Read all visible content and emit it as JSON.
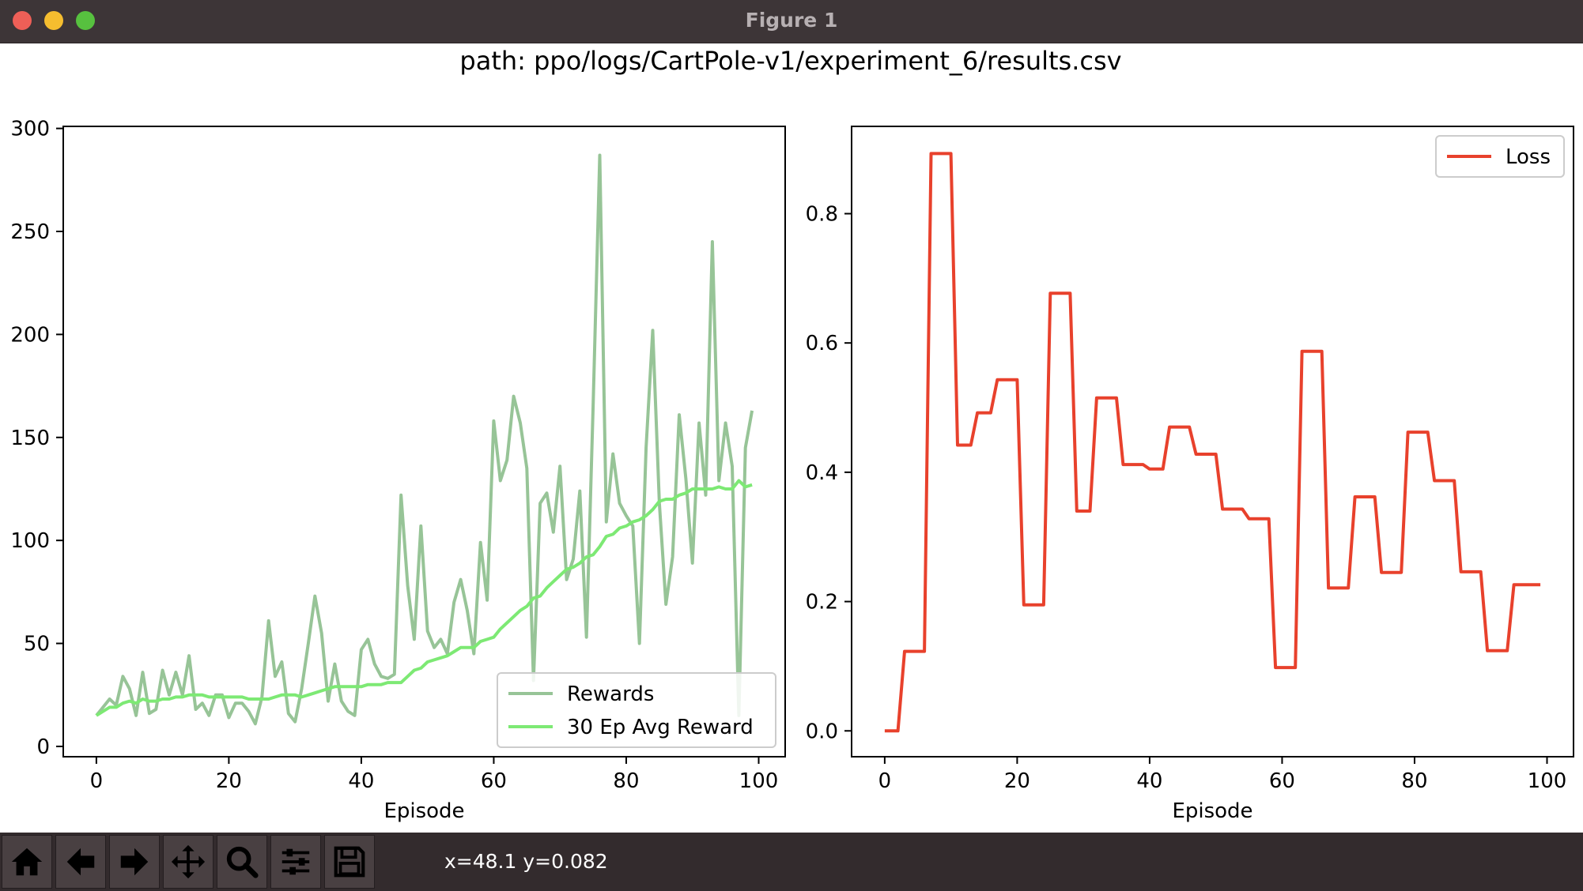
{
  "window": {
    "title": "Figure 1"
  },
  "figure": {
    "suptitle": "path: ppo/logs/CartPole-v1/experiment_6/results.csv"
  },
  "toolbar": {
    "buttons": [
      "home-icon",
      "back-arrow-icon",
      "forward-arrow-icon",
      "pan-move-icon",
      "zoom-magnifier-icon",
      "configure-sliders-icon",
      "save-floppy-icon"
    ],
    "coords": "x=48.1 y=0.082"
  },
  "colors": {
    "rewards": "#97c497",
    "avg": "#7de974",
    "loss": "#e8412c"
  },
  "chart_data": [
    {
      "type": "line",
      "title": "",
      "xlabel": "Episode",
      "ylabel": "",
      "xlim": [
        -5,
        104
      ],
      "ylim": [
        -5,
        301
      ],
      "xticks": [
        0,
        20,
        40,
        60,
        80,
        100
      ],
      "yticks": [
        0,
        50,
        100,
        150,
        200,
        250,
        300
      ],
      "grid": false,
      "legend": "lower-right",
      "x": [
        0,
        1,
        2,
        3,
        4,
        5,
        6,
        7,
        8,
        9,
        10,
        11,
        12,
        13,
        14,
        15,
        16,
        17,
        18,
        19,
        20,
        21,
        22,
        23,
        24,
        25,
        26,
        27,
        28,
        29,
        30,
        31,
        32,
        33,
        34,
        35,
        36,
        37,
        38,
        39,
        40,
        41,
        42,
        43,
        44,
        45,
        46,
        47,
        48,
        49,
        50,
        51,
        52,
        53,
        54,
        55,
        56,
        57,
        58,
        59,
        60,
        61,
        62,
        63,
        64,
        65,
        66,
        67,
        68,
        69,
        70,
        71,
        72,
        73,
        74,
        75,
        76,
        77,
        78,
        79,
        80,
        81,
        82,
        83,
        84,
        85,
        86,
        87,
        88,
        89,
        90,
        91,
        92,
        93,
        94,
        95,
        96,
        97,
        98,
        99
      ],
      "series": [
        {
          "name": "Rewards",
          "values": [
            15,
            19,
            23,
            20,
            34,
            28,
            15,
            36,
            16,
            18,
            37,
            25,
            36,
            25,
            44,
            18,
            21,
            15,
            25,
            25,
            14,
            21,
            21,
            17,
            11,
            24,
            61,
            34,
            41,
            16,
            12,
            28,
            50,
            73,
            55,
            22,
            40,
            22,
            17,
            15,
            47,
            52,
            40,
            34,
            33,
            35,
            122,
            78,
            52,
            107,
            56,
            48,
            52,
            45,
            70,
            81,
            66,
            45,
            99,
            71,
            158,
            129,
            139,
            170,
            157,
            135,
            32,
            118,
            123,
            104,
            136,
            81,
            91,
            124,
            53,
            165,
            287,
            109,
            142,
            118,
            112,
            107,
            50,
            145,
            202,
            118,
            69,
            92,
            161,
            130,
            89,
            157,
            122,
            245,
            129,
            157,
            136,
            15,
            145,
            163
          ]
        },
        {
          "name": "30 Ep Avg Reward",
          "values": [
            15,
            17,
            19,
            19,
            21,
            22,
            21,
            23,
            22,
            22,
            23,
            23,
            24,
            24,
            25,
            25,
            25,
            24,
            24,
            24,
            24,
            24,
            24,
            23,
            23,
            23,
            23,
            24,
            25,
            25,
            25,
            24,
            25,
            26,
            27,
            28,
            29,
            29,
            29,
            29,
            29,
            30,
            30,
            30,
            31,
            31,
            31,
            34,
            37,
            38,
            41,
            42,
            43,
            44,
            46,
            48,
            48,
            48,
            51,
            52,
            53,
            57,
            60,
            63,
            66,
            68,
            72,
            73,
            77,
            80,
            83,
            86,
            87,
            89,
            92,
            93,
            97,
            102,
            103,
            106,
            107,
            109,
            110,
            112,
            115,
            119,
            120,
            120,
            122,
            123,
            125,
            125,
            125,
            125,
            126,
            125,
            125,
            129,
            126,
            127
          ]
        }
      ]
    },
    {
      "type": "line",
      "title": "",
      "xlabel": "Episode",
      "ylabel": "",
      "xlim": [
        -5,
        104
      ],
      "ylim": [
        -0.04,
        0.935
      ],
      "xticks": [
        0,
        20,
        40,
        60,
        80,
        100
      ],
      "yticks": [
        0.0,
        0.2,
        0.4,
        0.6,
        0.8
      ],
      "grid": false,
      "legend": "upper-right",
      "x": [
        0,
        1,
        2,
        3,
        4,
        5,
        6,
        7,
        8,
        9,
        10,
        11,
        12,
        13,
        14,
        15,
        16,
        17,
        18,
        19,
        20,
        21,
        22,
        23,
        24,
        25,
        26,
        27,
        28,
        29,
        30,
        31,
        32,
        33,
        34,
        35,
        36,
        37,
        38,
        39,
        40,
        41,
        42,
        43,
        44,
        45,
        46,
        47,
        48,
        49,
        50,
        51,
        52,
        53,
        54,
        55,
        56,
        57,
        58,
        59,
        60,
        61,
        62,
        63,
        64,
        65,
        66,
        67,
        68,
        69,
        70,
        71,
        72,
        73,
        74,
        75,
        76,
        77,
        78,
        79,
        80,
        81,
        82,
        83,
        84,
        85,
        86,
        87,
        88,
        89,
        90,
        91,
        92,
        93,
        94,
        95,
        96,
        97,
        98,
        99
      ],
      "series": [
        {
          "name": "Loss",
          "values": [
            0.0,
            0.0,
            0.0,
            0.123,
            0.123,
            0.123,
            0.123,
            0.893,
            0.893,
            0.893,
            0.893,
            0.442,
            0.442,
            0.442,
            0.492,
            0.492,
            0.492,
            0.543,
            0.543,
            0.543,
            0.543,
            0.195,
            0.195,
            0.195,
            0.195,
            0.677,
            0.677,
            0.677,
            0.677,
            0.34,
            0.34,
            0.34,
            0.515,
            0.515,
            0.515,
            0.515,
            0.412,
            0.412,
            0.412,
            0.412,
            0.405,
            0.405,
            0.405,
            0.47,
            0.47,
            0.47,
            0.47,
            0.428,
            0.428,
            0.428,
            0.428,
            0.343,
            0.343,
            0.343,
            0.343,
            0.328,
            0.328,
            0.328,
            0.328,
            0.098,
            0.098,
            0.098,
            0.098,
            0.587,
            0.587,
            0.587,
            0.587,
            0.221,
            0.221,
            0.221,
            0.221,
            0.362,
            0.362,
            0.362,
            0.362,
            0.245,
            0.245,
            0.245,
            0.245,
            0.462,
            0.462,
            0.462,
            0.462,
            0.387,
            0.387,
            0.387,
            0.387,
            0.246,
            0.246,
            0.246,
            0.246,
            0.124,
            0.124,
            0.124,
            0.124,
            0.226,
            0.226,
            0.226,
            0.226,
            0.226
          ]
        }
      ]
    }
  ]
}
